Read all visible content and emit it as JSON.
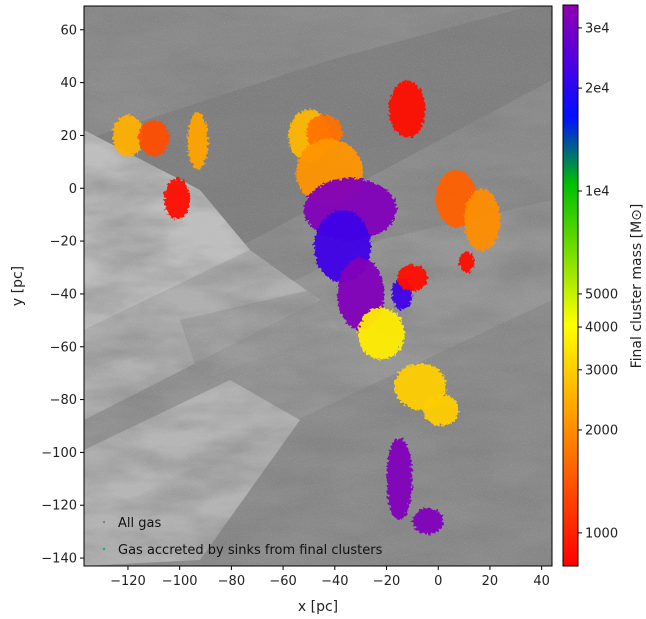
{
  "chart_data": {
    "type": "scatter",
    "title": "",
    "xlabel": "x [pc]",
    "ylabel": "y [pc]",
    "xlim": [
      -137,
      44
    ],
    "ylim": [
      -143,
      69
    ],
    "xticks": [
      -120,
      -100,
      -80,
      -60,
      -40,
      -20,
      0,
      20,
      40
    ],
    "yticks": [
      60,
      40,
      20,
      0,
      -20,
      -40,
      -60,
      -80,
      -100,
      -120,
      -140
    ],
    "xtick_labels": [
      "−120",
      "−100",
      "−80",
      "−60",
      "−40",
      "−20",
      "0",
      "20",
      "40"
    ],
    "ytick_labels": [
      "60",
      "40",
      "20",
      "0",
      "−20",
      "−40",
      "−60",
      "−80",
      "−100",
      "−120",
      "−140"
    ],
    "grid": false,
    "legend_placement": "bottom-left",
    "legend": [
      {
        "label": "All gas",
        "color": "#808080"
      },
      {
        "label": "Gas accreted by sinks from final clusters",
        "color": "#00c060"
      }
    ],
    "colorbar": {
      "label": "Final cluster mass [M⊙]",
      "scale": "log",
      "min": 800,
      "max": 35000,
      "ticks": [
        1000,
        2000,
        3000,
        4000,
        5000,
        10000,
        20000,
        30000
      ],
      "tick_labels": [
        "1000",
        "2000",
        "3000",
        "4000",
        "5000",
        "1e4",
        "2e4",
        "3e4"
      ]
    },
    "clusters": [
      {
        "x": -120,
        "y": 20,
        "rx": 6,
        "ry": 8,
        "mass": 2500
      },
      {
        "x": -110,
        "y": 19,
        "rx": 6,
        "ry": 7,
        "mass": 1350
      },
      {
        "x": -93,
        "y": 18,
        "rx": 4,
        "ry": 11,
        "mass": 2300
      },
      {
        "x": -101,
        "y": -4,
        "rx": 5,
        "ry": 8,
        "mass": 870
      },
      {
        "x": -12,
        "y": 30,
        "rx": 7,
        "ry": 11,
        "mass": 870
      },
      {
        "x": -50,
        "y": 20,
        "rx": 8,
        "ry": 10,
        "mass": 2600
      },
      {
        "x": -44,
        "y": 21,
        "rx": 7,
        "ry": 7,
        "mass": 1700
      },
      {
        "x": -42,
        "y": 6,
        "rx": 13,
        "ry": 13,
        "mass": 2100
      },
      {
        "x": -34,
        "y": -8,
        "rx": 18,
        "ry": 12,
        "mass": 32000
      },
      {
        "x": -37,
        "y": -22,
        "rx": 11,
        "ry": 14,
        "mass": 22000
      },
      {
        "x": -30,
        "y": -40,
        "rx": 9,
        "ry": 14,
        "mass": 32000
      },
      {
        "x": -22,
        "y": -55,
        "rx": 9,
        "ry": 10,
        "mass": 3600
      },
      {
        "x": -14,
        "y": -40,
        "rx": 4,
        "ry": 6,
        "mass": 22000
      },
      {
        "x": -10,
        "y": -34,
        "rx": 6,
        "ry": 5,
        "mass": 870
      },
      {
        "x": -7,
        "y": -75,
        "rx": 10,
        "ry": 9,
        "mass": 3000
      },
      {
        "x": 1,
        "y": -84,
        "rx": 7,
        "ry": 6,
        "mass": 3000
      },
      {
        "x": 7,
        "y": -4,
        "rx": 8,
        "ry": 11,
        "mass": 1500
      },
      {
        "x": 17,
        "y": -12,
        "rx": 7,
        "ry": 12,
        "mass": 2000
      },
      {
        "x": 11,
        "y": -28,
        "rx": 3,
        "ry": 4,
        "mass": 870
      },
      {
        "x": -15,
        "y": -110,
        "rx": 5,
        "ry": 16,
        "mass": 32000
      },
      {
        "x": -4,
        "y": -126,
        "rx": 6,
        "ry": 5,
        "mass": 32000
      }
    ]
  }
}
